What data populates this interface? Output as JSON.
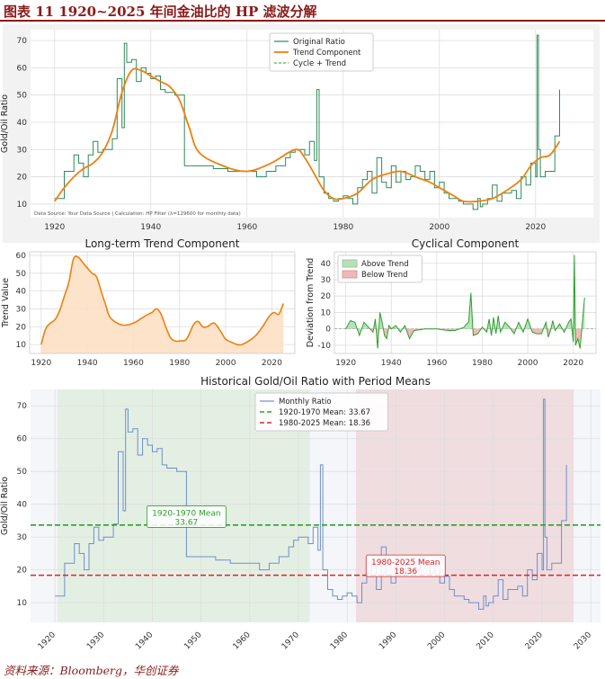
{
  "figure_title": "图表 11   1920~2025 年间金油比的 HP 滤波分解",
  "source_line": "资料来源：Bloomberg，华创证券",
  "colors": {
    "original": "#2e8b57",
    "trend": "#f07f0e",
    "cycle": "#2ca02c",
    "monthly": "#6f8fc8",
    "green_mean": "#2ca02c",
    "red_mean": "#d62728",
    "above_fill": "#b8e0b8",
    "below_fill": "#f2b8b8",
    "period1_band": "#e4efe4",
    "period2_band": "#efdde0"
  },
  "chart_data": [
    {
      "type": "line",
      "title": "",
      "xlabel": "",
      "ylabel": "Gold/Oil Ratio",
      "xlim": [
        1915,
        2032
      ],
      "ylim": [
        5,
        74
      ],
      "xticks": [
        1920,
        1940,
        1960,
        1980,
        2000,
        2020
      ],
      "yticks": [
        10,
        20,
        30,
        40,
        50,
        60,
        70
      ],
      "grid": true,
      "legend_position": "top-center",
      "annotation": "Data Source: Your Data Source | Calculation: HP Filter (λ=129600 for monthly data)",
      "series": [
        {
          "name": "Original Ratio",
          "style": "solid",
          "x": [
            1920,
            1921,
            1922,
            1923,
            1924,
            1925,
            1926,
            1927,
            1928,
            1929,
            1930,
            1931,
            1932,
            1933,
            1934,
            1934.5,
            1935,
            1936,
            1937,
            1938,
            1939,
            1940,
            1941,
            1942,
            1943,
            1944,
            1945,
            1946,
            1947,
            1948,
            1950,
            1953,
            1956,
            1960,
            1962,
            1964,
            1966,
            1968,
            1969,
            1970,
            1971,
            1972,
            1973,
            1974,
            1974.5,
            1975,
            1976,
            1977,
            1978,
            1979,
            1980,
            1981,
            1982,
            1983,
            1984,
            1985,
            1986,
            1987,
            1988,
            1989,
            1990,
            1991,
            1992,
            1993,
            1994,
            1995,
            1996,
            1997,
            1998,
            1999,
            2000,
            2001,
            2002,
            2003,
            2004,
            2005,
            2006,
            2007,
            2008,
            2008.5,
            2009,
            2010,
            2011,
            2012,
            2013,
            2014,
            2015,
            2016,
            2017,
            2018,
            2019,
            2020,
            2020.3,
            2020.6,
            2021,
            2022,
            2023,
            2024,
            2025
          ],
          "y": [
            12,
            12,
            22,
            22,
            28,
            25,
            20,
            28,
            33,
            29,
            30,
            30,
            34,
            56,
            38,
            69,
            62,
            63,
            55,
            60,
            58,
            56,
            57,
            52,
            51,
            51,
            50,
            50,
            24,
            24,
            24,
            23,
            22,
            22,
            20,
            22,
            24,
            27,
            29,
            30,
            30,
            28,
            33,
            26,
            52,
            20,
            14,
            12,
            11,
            12,
            13,
            12,
            10,
            16,
            19,
            22,
            14,
            27,
            18,
            16,
            24,
            18,
            22,
            19,
            20,
            24,
            22,
            19,
            22,
            16,
            18,
            14,
            12,
            12,
            11,
            10,
            10,
            8,
            12,
            9,
            10,
            12,
            17,
            11,
            14,
            14,
            15,
            12,
            20,
            17,
            25,
            20,
            72,
            30,
            20,
            22,
            22,
            35,
            52
          ]
        },
        {
          "name": "Trend Component",
          "style": "solid-thick",
          "x": [
            1920,
            1922,
            1924,
            1926,
            1928,
            1930,
            1932,
            1934,
            1936,
            1938,
            1940,
            1942,
            1944,
            1946,
            1948,
            1950,
            1955,
            1960,
            1965,
            1970,
            1972,
            1974,
            1976,
            1978,
            1980,
            1983,
            1986,
            1989,
            1992,
            1995,
            1998,
            2000,
            2003,
            2005,
            2008,
            2011,
            2014,
            2017,
            2019,
            2021,
            2023,
            2025
          ],
          "y": [
            11,
            16,
            20,
            23,
            25,
            29,
            37,
            51,
            59,
            59,
            57,
            55,
            53,
            48,
            38,
            29,
            24,
            22,
            25,
            30,
            27,
            21,
            15,
            12,
            12,
            14,
            19,
            21,
            22,
            20,
            18,
            16,
            13,
            11,
            11,
            12,
            15,
            19,
            24,
            27,
            28,
            33
          ]
        },
        {
          "name": "Cycle + Trend",
          "style": "dashed",
          "x": [],
          "y": []
        }
      ]
    },
    {
      "type": "area",
      "title": "Long-term Trend Component",
      "xlabel": "",
      "ylabel": "Trend Value",
      "xlim": [
        1915,
        2030
      ],
      "ylim": [
        5,
        62
      ],
      "xticks": [
        1920,
        1940,
        1960,
        1980,
        2000,
        2020
      ],
      "yticks": [
        10,
        20,
        30,
        40,
        50,
        60
      ],
      "grid": true,
      "series": [
        {
          "x": [
            1920,
            1922,
            1924,
            1926,
            1928,
            1930,
            1932,
            1934,
            1936,
            1938,
            1940,
            1942,
            1944,
            1946,
            1948,
            1950,
            1955,
            1960,
            1965,
            1968,
            1970,
            1972,
            1974,
            1976,
            1978,
            1980,
            1983,
            1986,
            1988,
            1990,
            1992,
            1995,
            1998,
            2000,
            2003,
            2005,
            2007,
            2010,
            2013,
            2016,
            2019,
            2021,
            2023,
            2025
          ],
          "y": [
            10,
            19,
            22,
            24,
            29,
            37,
            45,
            58,
            59,
            56,
            53,
            50,
            48,
            40,
            32,
            25,
            21,
            22,
            26,
            28,
            30,
            27,
            20,
            14,
            12,
            12,
            13,
            21,
            23,
            20,
            20,
            22,
            17,
            13,
            11,
            10,
            10,
            12,
            15,
            20,
            26,
            28,
            27,
            33
          ]
        }
      ]
    },
    {
      "type": "area",
      "title": "Cyclical Component",
      "xlabel": "",
      "ylabel": "Deviation from Trend",
      "xlim": [
        1915,
        2030
      ],
      "ylim": [
        -15,
        47
      ],
      "xticks": [
        1920,
        1940,
        1960,
        1980,
        2000,
        2020
      ],
      "yticks": [
        -10,
        0,
        10,
        20,
        30,
        40
      ],
      "grid": true,
      "legend_position": "top-left",
      "legend": [
        "Above Trend",
        "Below Trend"
      ],
      "series": [
        {
          "name": "Cycle",
          "x": [
            1920,
            1922,
            1924,
            1926,
            1928,
            1930,
            1932,
            1933,
            1934,
            1935,
            1936,
            1937,
            1938,
            1939,
            1940,
            1942,
            1944,
            1946,
            1948,
            1950,
            1955,
            1960,
            1965,
            1968,
            1970,
            1972,
            1973,
            1974,
            1975,
            1976,
            1978,
            1980,
            1982,
            1983,
            1984,
            1985,
            1986,
            1987,
            1988,
            1990,
            1992,
            1994,
            1996,
            1998,
            2000,
            2002,
            2004,
            2006,
            2008,
            2009,
            2010,
            2011,
            2012,
            2014,
            2016,
            2018,
            2019,
            2020,
            2020.5,
            2021,
            2022,
            2023,
            2024,
            2025
          ],
          "y": [
            0,
            5,
            4,
            -4,
            4,
            1,
            -2,
            6,
            -12,
            10,
            4,
            -4,
            -6,
            2,
            0,
            2,
            -2,
            2,
            -6,
            -1,
            0,
            0,
            -1,
            -1,
            0,
            1,
            3,
            4,
            22,
            -4,
            -3,
            1,
            -2,
            6,
            -4,
            7,
            -3,
            8,
            -2,
            4,
            1,
            -3,
            4,
            -2,
            6,
            -2,
            -3,
            -3,
            4,
            -5,
            -1,
            5,
            -1,
            3,
            -2,
            4,
            6,
            -8,
            45,
            -10,
            -6,
            -12,
            4,
            19
          ]
        }
      ]
    },
    {
      "type": "line",
      "title": "Historical Gold/Oil Ratio with Period Means",
      "xlabel": "",
      "ylabel": "Gold/Oil Ratio",
      "xlim": [
        1915,
        2032
      ],
      "ylim": [
        4,
        75
      ],
      "xticks": [
        1920,
        1930,
        1940,
        1950,
        1960,
        1970,
        1980,
        1990,
        2000,
        2010,
        2020,
        2030
      ],
      "yticks": [
        10,
        20,
        30,
        40,
        50,
        60,
        70
      ],
      "grid": true,
      "legend_position": "top-center",
      "bands": [
        {
          "from": 1920.5,
          "to": 1972.3,
          "period": "1920-1970"
        },
        {
          "from": 1981.8,
          "to": 2026.5,
          "period": "1980-2025"
        }
      ],
      "hlines": [
        {
          "value": 33.67,
          "label": "1920-1970 Mean: 33.67"
        },
        {
          "value": 18.36,
          "label": "1980-2025 Mean: 18.36"
        }
      ],
      "annotations": [
        {
          "line1": "1920-1970 Mean",
          "line2": "33.67",
          "x": 1947,
          "y": 36.5
        },
        {
          "line1": "1980-2025 Mean",
          "line2": "18.36",
          "x": 1992,
          "y": 21.5
        }
      ],
      "series": [
        {
          "name": "Monthly Ratio",
          "x": [
            1920,
            1921,
            1922,
            1923,
            1924,
            1925,
            1926,
            1927,
            1928,
            1929,
            1930,
            1931,
            1932,
            1933,
            1934,
            1934.5,
            1935,
            1936,
            1937,
            1938,
            1939,
            1940,
            1941,
            1942,
            1943,
            1944,
            1945,
            1946,
            1947,
            1948,
            1950,
            1953,
            1956,
            1960,
            1962,
            1964,
            1966,
            1968,
            1969,
            1970,
            1971,
            1972,
            1973,
            1974,
            1974.5,
            1975,
            1976,
            1977,
            1978,
            1979,
            1980,
            1981,
            1982,
            1983,
            1984,
            1985,
            1986,
            1987,
            1988,
            1989,
            1990,
            1991,
            1992,
            1993,
            1994,
            1995,
            1996,
            1997,
            1998,
            1999,
            2000,
            2001,
            2002,
            2003,
            2004,
            2005,
            2006,
            2007,
            2008,
            2008.5,
            2009,
            2010,
            2011,
            2012,
            2013,
            2014,
            2015,
            2016,
            2017,
            2018,
            2019,
            2020,
            2020.3,
            2020.6,
            2021,
            2022,
            2023,
            2024,
            2025
          ],
          "y": [
            12,
            12,
            22,
            22,
            28,
            25,
            20,
            28,
            33,
            29,
            30,
            30,
            34,
            56,
            38,
            69,
            62,
            63,
            55,
            60,
            58,
            56,
            57,
            52,
            51,
            51,
            50,
            50,
            24,
            24,
            24,
            23,
            22,
            22,
            20,
            22,
            24,
            27,
            29,
            30,
            30,
            28,
            33,
            26,
            52,
            20,
            14,
            12,
            11,
            12,
            13,
            12,
            10,
            16,
            19,
            22,
            14,
            27,
            18,
            16,
            24,
            18,
            22,
            19,
            20,
            24,
            22,
            19,
            22,
            16,
            18,
            14,
            12,
            12,
            11,
            10,
            10,
            8,
            12,
            9,
            10,
            12,
            17,
            11,
            14,
            14,
            15,
            12,
            20,
            17,
            25,
            20,
            72,
            30,
            20,
            22,
            22,
            35,
            52
          ]
        }
      ]
    }
  ]
}
